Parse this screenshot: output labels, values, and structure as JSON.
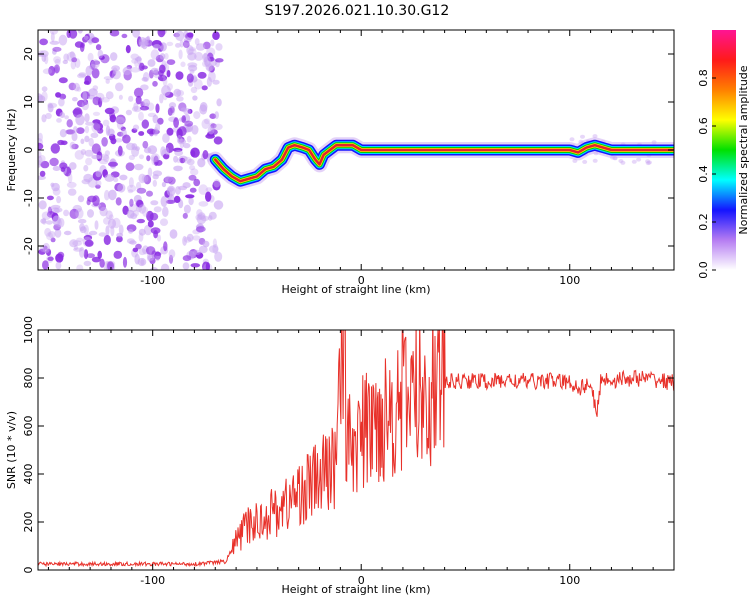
{
  "title": "S197.2026.021.10.30.G12",
  "colors": {
    "snr_line": "#e8312a",
    "ridge_core": "#e3222e",
    "scatter_a": "#8a2be2",
    "scatter_b": "#c9a6f2",
    "axis": "#000000"
  },
  "chart_data": [
    {
      "type": "heatmap",
      "panel": "top",
      "xlabel": "Height of straight line (km)",
      "ylabel": "Frequency (Hz)",
      "xlim": [
        -155,
        150
      ],
      "ylim": [
        -25,
        25
      ],
      "xticks": [
        -100,
        0,
        100
      ],
      "xtick_labels": [
        "-100",
        "0",
        "100"
      ],
      "yticks": [
        -20,
        -10,
        0,
        10,
        20
      ],
      "ytick_labels": [
        "-20",
        "-10",
        "0",
        "10",
        "20"
      ],
      "noise_region_x": [
        -155,
        -68
      ],
      "ridge": {
        "x": [
          -70,
          -66,
          -62,
          -58,
          -54,
          -50,
          -46,
          -42,
          -38,
          -35,
          -32,
          -28,
          -25,
          -22,
          -20,
          -18,
          -15,
          -12,
          -8,
          -4,
          0,
          20,
          40,
          60,
          80,
          100,
          104,
          108,
          112,
          116,
          120,
          130,
          140,
          150
        ],
        "freq": [
          -2,
          -4,
          -5.5,
          -6.5,
          -6,
          -5.5,
          -4,
          -3.5,
          -2,
          0.5,
          1,
          0.5,
          0,
          -2,
          -3,
          -1,
          0,
          1,
          1,
          1,
          0,
          0,
          0,
          0,
          0,
          0,
          -0.5,
          0.5,
          1,
          0.5,
          0,
          0,
          0,
          0
        ]
      },
      "colorbar": {
        "label": "Normalized spectral amplitude",
        "range": [
          0,
          1
        ],
        "ticks": [
          0,
          0.2,
          0.4,
          0.6,
          0.8
        ],
        "tick_labels": [
          "0.0",
          "0.2",
          "0.4",
          "0.6",
          "0.8"
        ],
        "stops": [
          "#ffffff",
          "#b57cf2",
          "#1414ff",
          "#00ffff",
          "#00e000",
          "#ffff00",
          "#ff8000",
          "#ff1a1a",
          "#ff1493"
        ]
      }
    },
    {
      "type": "line",
      "panel": "bottom",
      "xlabel": "Height of straight line (km)",
      "ylabel": "SNR (10 * v/v)",
      "xlim": [
        -155,
        150
      ],
      "ylim": [
        0,
        1000
      ],
      "xticks": [
        -100,
        0,
        100
      ],
      "xtick_labels": [
        "-100",
        "0",
        "100"
      ],
      "yticks": [
        0,
        200,
        400,
        600,
        800,
        1000
      ],
      "ytick_labels": [
        "0",
        "200",
        "400",
        "600",
        "800",
        "1000"
      ],
      "series": [
        {
          "name": "SNR",
          "x": [
            -155,
            -140,
            -120,
            -100,
            -80,
            -65,
            -60,
            -55,
            -50,
            -45,
            -40,
            -35,
            -30,
            -25,
            -20,
            -15,
            -12,
            -10,
            -8,
            -5,
            0,
            5,
            10,
            15,
            20,
            25,
            30,
            35,
            40,
            50,
            60,
            70,
            80,
            90,
            100,
            105,
            110,
            113,
            115,
            120,
            130,
            140,
            150
          ],
          "values": [
            25,
            25,
            25,
            25,
            25,
            35,
            120,
            180,
            200,
            230,
            250,
            280,
            320,
            350,
            380,
            420,
            460,
            1000,
            480,
            520,
            560,
            600,
            640,
            680,
            710,
            740,
            760,
            775,
            780,
            790,
            785,
            790,
            785,
            790,
            780,
            760,
            780,
            640,
            800,
            790,
            800,
            795,
            780
          ]
        }
      ]
    }
  ]
}
